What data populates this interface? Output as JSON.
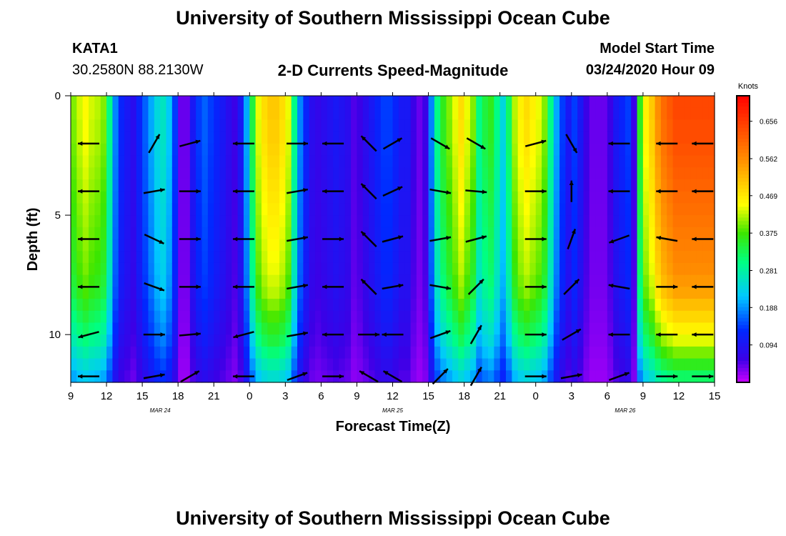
{
  "page_title": "University of Southern Mississippi Ocean Cube",
  "footer_title": "University of Southern Mississippi Ocean Cube",
  "station": {
    "id": "KATA1",
    "location": "30.2580N 88.2130W"
  },
  "plot_title": "2-D Currents Speed-Magnitude",
  "model_start": {
    "label": "Model Start Time",
    "value": "03/24/2020 Hour 09"
  },
  "chart_data": {
    "type": "heatmap",
    "title": "2-D Currents Speed-Magnitude",
    "xlabel": "Forecast Time(Z)",
    "ylabel": "Depth (ft)",
    "units": "Knots",
    "x_ticks": [
      "9",
      "12",
      "15",
      "18",
      "21",
      "0",
      "3",
      "6",
      "9",
      "12",
      "15",
      "18",
      "21",
      "0",
      "3",
      "6",
      "9",
      "12",
      "15"
    ],
    "x_tick_hours": [
      0,
      3,
      6,
      9,
      12,
      15,
      18,
      21,
      24,
      27,
      30,
      33,
      36,
      39,
      42,
      45,
      48,
      51,
      54
    ],
    "date_labels": [
      {
        "text": "MAR 24",
        "hour": 7.5
      },
      {
        "text": "MAR 25",
        "hour": 27
      },
      {
        "text": "MAR 26",
        "hour": 46.5
      }
    ],
    "y_ticks": [
      "0",
      "5",
      "10"
    ],
    "y_tick_values": [
      0,
      5,
      10
    ],
    "xlim_hours": [
      0,
      54
    ],
    "ylim_ft": [
      0,
      12
    ],
    "colorbar_labels": [
      "0.656",
      "0.562",
      "0.469",
      "0.375",
      "0.281",
      "0.188",
      "0.094"
    ],
    "colorbar_values": [
      0.656,
      0.562,
      0.469,
      0.375,
      0.281,
      0.188,
      0.094
    ],
    "color_range": [
      0,
      0.72
    ],
    "grid": false,
    "time_hours": [
      0,
      0.5,
      1,
      1.5,
      2,
      2.5,
      3,
      3.5,
      4,
      4.5,
      5,
      5.5,
      6,
      6.5,
      7,
      7.5,
      8,
      8.5,
      9,
      9.5,
      10,
      10.5,
      11,
      11.5,
      12,
      12.5,
      13,
      13.5,
      14,
      14.5,
      15,
      15.5,
      16,
      16.5,
      17,
      17.5,
      18,
      18.5,
      19,
      19.5,
      20,
      20.5,
      21,
      21.5,
      22,
      22.5,
      23,
      23.5,
      24,
      24.5,
      25,
      25.5,
      26,
      26.5,
      27,
      27.5,
      28,
      28.5,
      29,
      29.5,
      30,
      30.5,
      31,
      31.5,
      32,
      32.5,
      33,
      33.5,
      34,
      34.5,
      35,
      35.5,
      36,
      36.5,
      37,
      37.5,
      38,
      38.5,
      39,
      39.5,
      40,
      40.5,
      41,
      41.5,
      42,
      42.5,
      43,
      43.5,
      44,
      44.5,
      45,
      45.5,
      46,
      46.5,
      47,
      47.5,
      48,
      48.5,
      49,
      49.5,
      50,
      50.5,
      51,
      51.5,
      52,
      52.5,
      53,
      53.5
    ],
    "surface_speed_knots": [
      0.4,
      0.43,
      0.45,
      0.43,
      0.42,
      0.4,
      0.3,
      0.18,
      0.12,
      0.1,
      0.08,
      0.12,
      0.16,
      0.2,
      0.24,
      0.26,
      0.22,
      0.14,
      0.04,
      0.04,
      0.1,
      0.14,
      0.16,
      0.14,
      0.12,
      0.1,
      0.08,
      0.06,
      0.1,
      0.2,
      0.34,
      0.44,
      0.48,
      0.5,
      0.5,
      0.48,
      0.44,
      0.3,
      0.18,
      0.12,
      0.08,
      0.07,
      0.08,
      0.09,
      0.1,
      0.09,
      0.08,
      0.05,
      0.06,
      0.08,
      0.1,
      0.12,
      0.14,
      0.14,
      0.12,
      0.1,
      0.1,
      0.06,
      0.04,
      0.06,
      0.18,
      0.3,
      0.36,
      0.4,
      0.44,
      0.48,
      0.44,
      0.4,
      0.3,
      0.34,
      0.36,
      0.3,
      0.24,
      0.32,
      0.42,
      0.46,
      0.48,
      0.46,
      0.44,
      0.4,
      0.3,
      0.2,
      0.14,
      0.1,
      0.14,
      0.1,
      0.06,
      0.04,
      0.04,
      0.04,
      0.06,
      0.1,
      0.12,
      0.14,
      0.06,
      0.36,
      0.46,
      0.5,
      0.56,
      0.6,
      0.62,
      0.64,
      0.64,
      0.64,
      0.64,
      0.64,
      0.64,
      0.64
    ],
    "depth_profile_ft": [
      0,
      0.5,
      1,
      1.5,
      2,
      2.5,
      3,
      3.5,
      4,
      4.5,
      5,
      5.5,
      6,
      6.5,
      7,
      7.5,
      8,
      8.5,
      9,
      9.5,
      10,
      10.5,
      11,
      11.5
    ],
    "depth_factor": [
      1,
      1,
      0.99,
      0.99,
      0.98,
      0.97,
      0.96,
      0.95,
      0.94,
      0.93,
      0.92,
      0.91,
      0.9,
      0.89,
      0.88,
      0.86,
      0.84,
      0.8,
      0.76,
      0.72,
      0.68,
      0.62,
      0.56,
      0.5
    ],
    "vector_note": "Velocity direction arrows at 2 ft depth intervals",
    "vectors_2ft": [
      {
        "hour": 1.5,
        "depths": [
          2,
          4,
          6,
          8,
          10,
          12
        ],
        "angle_deg": [
          180,
          180,
          180,
          180,
          195,
          180
        ]
      },
      {
        "hour": 7,
        "depths": [
          2,
          4,
          6,
          8,
          10,
          12
        ],
        "angle_deg": [
          60,
          10,
          -25,
          -20,
          0,
          10
        ]
      },
      {
        "hour": 10,
        "depths": [
          2,
          4,
          6,
          8,
          10,
          12
        ],
        "angle_deg": [
          15,
          0,
          0,
          0,
          5,
          30
        ]
      },
      {
        "hour": 14.5,
        "depths": [
          2,
          4,
          6,
          8,
          10,
          12
        ],
        "angle_deg": [
          180,
          180,
          180,
          180,
          195,
          180
        ]
      },
      {
        "hour": 19,
        "depths": [
          2,
          4,
          6,
          8,
          10,
          12
        ],
        "angle_deg": [
          0,
          10,
          10,
          10,
          10,
          20
        ]
      },
      {
        "hour": 22,
        "depths": [
          2,
          4,
          6,
          8,
          10,
          12
        ],
        "angle_deg": [
          180,
          180,
          0,
          180,
          180,
          0
        ]
      },
      {
        "hour": 25,
        "depths": [
          2,
          4,
          6,
          8,
          10,
          12
        ],
        "angle_deg": [
          135,
          135,
          135,
          135,
          0,
          150
        ]
      },
      {
        "hour": 27,
        "depths": [
          2,
          4,
          6,
          8,
          10,
          12
        ],
        "angle_deg": [
          30,
          25,
          15,
          10,
          180,
          150
        ]
      },
      {
        "hour": 31,
        "depths": [
          2,
          4,
          6,
          8,
          10,
          12
        ],
        "angle_deg": [
          -30,
          -10,
          10,
          -10,
          20,
          45
        ]
      },
      {
        "hour": 34,
        "depths": [
          2,
          4,
          6,
          8,
          10,
          12
        ],
        "angle_deg": [
          -30,
          -5,
          15,
          45,
          60,
          60
        ]
      },
      {
        "hour": 39,
        "depths": [
          2,
          4,
          6,
          8,
          10,
          12
        ],
        "angle_deg": [
          15,
          0,
          0,
          0,
          0,
          0
        ]
      },
      {
        "hour": 42,
        "depths": [
          2,
          4,
          6,
          8,
          10,
          12
        ],
        "angle_deg": [
          -60,
          90,
          70,
          45,
          30,
          10
        ]
      },
      {
        "hour": 46,
        "depths": [
          2,
          4,
          6,
          8,
          10,
          12
        ],
        "angle_deg": [
          180,
          180,
          200,
          170,
          180,
          20
        ]
      },
      {
        "hour": 50,
        "depths": [
          2,
          4,
          6,
          8,
          10,
          12
        ],
        "angle_deg": [
          180,
          180,
          170,
          0,
          180,
          0
        ]
      },
      {
        "hour": 53,
        "depths": [
          2,
          4,
          6,
          8,
          10,
          12
        ],
        "angle_deg": [
          180,
          180,
          180,
          180,
          180,
          0
        ]
      }
    ]
  }
}
